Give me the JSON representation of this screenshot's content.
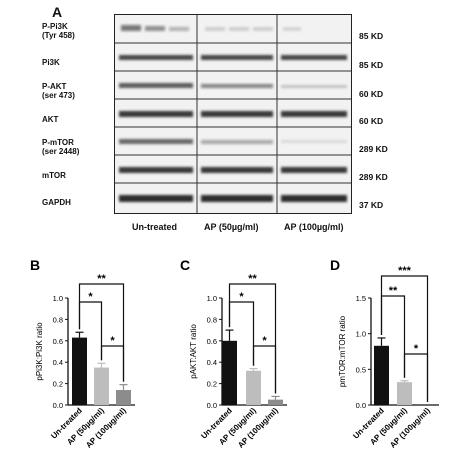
{
  "panel_a": {
    "letter": "A",
    "rows": [
      {
        "label": "P-Pi3K (Tyr 458)",
        "line1": "P-Pi3K",
        "line2": "(Tyr 458)",
        "kd": "85 KD"
      },
      {
        "label": "Pi3K",
        "line1": "Pi3K",
        "line2": "",
        "kd": "85 KD"
      },
      {
        "label": "P-AKT (ser 473)",
        "line1": "P-AKT",
        "line2": "(ser 473)",
        "kd": "60 KD"
      },
      {
        "label": "AKT",
        "line1": "AKT",
        "line2": "",
        "kd": "60 KD"
      },
      {
        "label": "P-mTOR (ser 2448)",
        "line1": "P-mTOR",
        "line2": "(ser 2448)",
        "kd": "289 KD"
      },
      {
        "label": "mTOR",
        "line1": "mTOR",
        "line2": "",
        "kd": "289 KD"
      },
      {
        "label": "GAPDH",
        "line1": "GAPDH",
        "line2": "",
        "kd": "37 KD"
      }
    ],
    "conditions": [
      "Un-treated",
      "AP (50µg/ml)",
      "AP (100µg/ml)"
    ]
  },
  "colors": {
    "untreated": "#111111",
    "ap50": "#bdbdbd",
    "ap100": "#8c8c8c"
  },
  "chart_data": [
    {
      "panel": "B",
      "type": "bar",
      "categories": [
        "Un-treated",
        "AP (50µg/ml)",
        "AP (100µg/ml)"
      ],
      "values": [
        0.63,
        0.35,
        0.14
      ],
      "errors": [
        0.05,
        0.04,
        0.05
      ],
      "ylabel": "pPi3K:Pi3K ratio",
      "ylim": [
        0,
        1.0
      ],
      "yticks": [
        "0.0",
        "0.2",
        "0.4",
        "0.6",
        "0.8",
        "1.0"
      ],
      "significance": [
        {
          "pair": [
            0,
            1
          ],
          "label": "*"
        },
        {
          "pair": [
            0,
            2
          ],
          "label": "**"
        },
        {
          "pair": [
            1,
            2
          ],
          "label": "*"
        }
      ]
    },
    {
      "panel": "C",
      "type": "bar",
      "categories": [
        "Un-treated",
        "AP (50µg/ml)",
        "AP (100µg/ml)"
      ],
      "values": [
        0.6,
        0.32,
        0.05
      ],
      "errors": [
        0.1,
        0.02,
        0.03
      ],
      "ylabel": "pAKT:AKT ratio",
      "ylim": [
        0,
        1.0
      ],
      "yticks": [
        "0.0",
        "0.2",
        "0.4",
        "0.6",
        "0.8",
        "1.0"
      ],
      "significance": [
        {
          "pair": [
            0,
            1
          ],
          "label": "*"
        },
        {
          "pair": [
            0,
            2
          ],
          "label": "**"
        },
        {
          "pair": [
            1,
            2
          ],
          "label": "*"
        }
      ]
    },
    {
      "panel": "D",
      "type": "bar",
      "categories": [
        "Un-treated",
        "AP (50µg/ml)",
        "AP (100µg/ml)"
      ],
      "values": [
        0.83,
        0.32,
        0.0
      ],
      "errors": [
        0.11,
        0.02,
        0.0
      ],
      "ylabel": "pmTOR:mTOR ratio",
      "ylim": [
        0,
        1.5
      ],
      "yticks": [
        "0.0",
        "0.5",
        "1.0",
        "1.5"
      ],
      "significance": [
        {
          "pair": [
            0,
            1
          ],
          "label": "**"
        },
        {
          "pair": [
            0,
            2
          ],
          "label": "***"
        },
        {
          "pair": [
            1,
            2
          ],
          "label": "*"
        }
      ]
    }
  ]
}
